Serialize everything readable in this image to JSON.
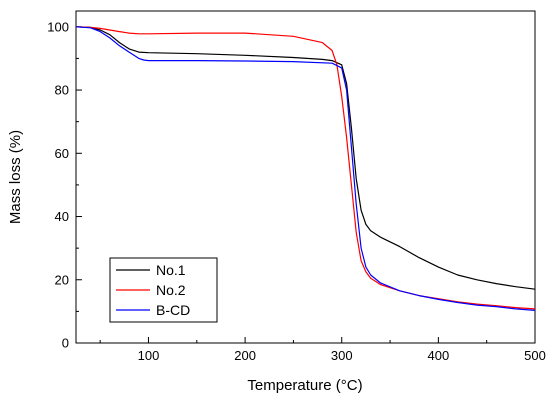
{
  "chart_data": {
    "type": "line",
    "title": "",
    "xlabel": "Temperature (°C)",
    "ylabel": "Mass loss (%)",
    "xlim": [
      25,
      500
    ],
    "ylim": [
      0,
      105
    ],
    "x_ticks": [
      100,
      200,
      300,
      400,
      500
    ],
    "y_ticks": [
      0,
      20,
      40,
      60,
      80,
      100
    ],
    "grid": false,
    "legend_position": "bottom-left",
    "series": [
      {
        "name": "No.1",
        "color": "#000000",
        "x": [
          25,
          40,
          50,
          60,
          70,
          80,
          90,
          100,
          150,
          200,
          250,
          280,
          290,
          300,
          305,
          310,
          315,
          320,
          325,
          330,
          340,
          360,
          380,
          400,
          420,
          440,
          460,
          480,
          500
        ],
        "y": [
          100,
          99.8,
          99,
          97.5,
          95,
          93,
          92,
          91.8,
          91.5,
          91,
          90.3,
          89.7,
          89.3,
          88,
          82,
          68,
          52,
          42,
          37.5,
          35.5,
          33.5,
          30.5,
          27,
          24,
          21.5,
          20,
          18.8,
          17.8,
          17
        ]
      },
      {
        "name": "No.2",
        "color": "#ff0000",
        "x": [
          25,
          40,
          50,
          60,
          70,
          80,
          90,
          100,
          150,
          200,
          250,
          280,
          290,
          295,
          300,
          305,
          310,
          315,
          320,
          325,
          330,
          340,
          360,
          380,
          400,
          420,
          440,
          460,
          480,
          500
        ],
        "y": [
          100,
          99.8,
          99.5,
          99,
          98.5,
          98,
          97.8,
          97.8,
          98,
          98,
          97,
          95,
          92.5,
          88,
          78,
          65,
          50,
          35,
          26,
          22.5,
          20.5,
          18.5,
          16.5,
          15,
          14,
          13,
          12.3,
          11.8,
          11.2,
          10.8
        ]
      },
      {
        "name": "B-CD",
        "color": "#0000ff",
        "x": [
          25,
          40,
          50,
          60,
          70,
          80,
          90,
          95,
          100,
          150,
          200,
          250,
          290,
          300,
          305,
          310,
          315,
          320,
          325,
          330,
          340,
          360,
          380,
          400,
          420,
          440,
          460,
          480,
          500
        ],
        "y": [
          100,
          99.7,
          98.5,
          96.5,
          94,
          92,
          90,
          89.5,
          89.3,
          89.3,
          89.2,
          89,
          88.5,
          87,
          80,
          62,
          44,
          30,
          24,
          21.5,
          19,
          16.5,
          15,
          13.8,
          12.8,
          12,
          11.5,
          10.8,
          10.3
        ]
      }
    ]
  }
}
